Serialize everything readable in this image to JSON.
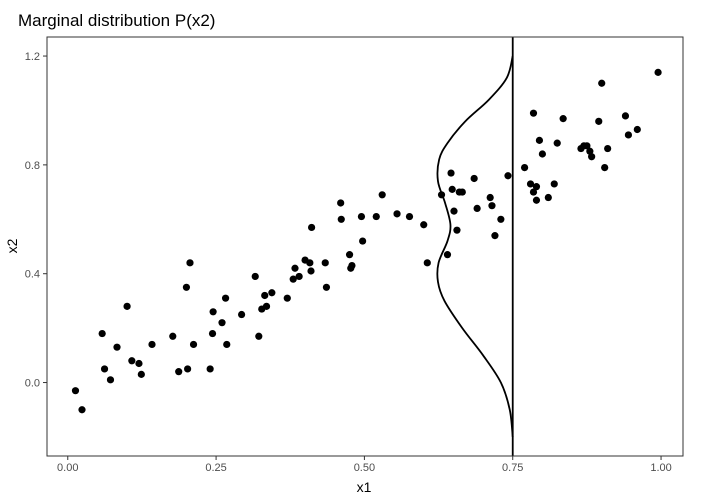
{
  "chart_data": {
    "type": "scatter",
    "title": "Marginal distribution P(x2)",
    "xlabel": "x1",
    "ylabel": "x2",
    "xlim": [
      -0.035,
      1.037
    ],
    "ylim": [
      -0.27,
      1.27
    ],
    "xticks": [
      0.0,
      0.25,
      0.5,
      0.75,
      1.0
    ],
    "xtick_labels": [
      "0.00",
      "0.25",
      "0.50",
      "0.75",
      "1.00"
    ],
    "yticks": [
      0.0,
      0.4,
      0.8,
      1.2
    ],
    "ytick_labels": [
      "0.0",
      "0.4",
      "0.8",
      "1.2"
    ],
    "grid": false,
    "theme": "bw",
    "point_color": "#000000",
    "vline": {
      "x": 0.75,
      "color": "#000000"
    },
    "density_curve": {
      "description": "Marginal density of x2 drawn leftward from the vertical line at x1=0.75 (bimodal, modes near x2≈0.8 and x2≈0.4)",
      "points": [
        [
          0.75,
          -0.2
        ],
        [
          0.745,
          -0.1
        ],
        [
          0.73,
          0.0
        ],
        [
          0.7,
          0.1
        ],
        [
          0.665,
          0.2
        ],
        [
          0.635,
          0.3
        ],
        [
          0.624,
          0.37
        ],
        [
          0.625,
          0.44
        ],
        [
          0.64,
          0.52
        ],
        [
          0.645,
          0.58
        ],
        [
          0.636,
          0.66
        ],
        [
          0.624,
          0.74
        ],
        [
          0.626,
          0.82
        ],
        [
          0.64,
          0.88
        ],
        [
          0.67,
          0.96
        ],
        [
          0.71,
          1.04
        ],
        [
          0.74,
          1.12
        ],
        [
          0.75,
          1.2
        ]
      ]
    },
    "x": [
      0.013,
      0.024,
      0.058,
      0.062,
      0.072,
      0.083,
      0.1,
      0.108,
      0.12,
      0.124,
      0.142,
      0.177,
      0.187,
      0.2,
      0.202,
      0.206,
      0.212,
      0.24,
      0.244,
      0.245,
      0.26,
      0.266,
      0.268,
      0.293,
      0.316,
      0.322,
      0.327,
      0.332,
      0.335,
      0.344,
      0.37,
      0.38,
      0.383,
      0.39,
      0.4,
      0.41,
      0.411,
      0.408,
      0.434,
      0.436,
      0.46,
      0.461,
      0.475,
      0.477,
      0.479,
      0.495,
      0.497,
      0.52,
      0.53,
      0.555,
      0.576,
      0.6,
      0.606,
      0.63,
      0.64,
      0.646,
      0.648,
      0.651,
      0.656,
      0.66,
      0.665,
      0.685,
      0.69,
      0.712,
      0.715,
      0.72,
      0.73,
      0.742,
      0.77,
      0.78,
      0.785,
      0.79,
      0.785,
      0.79,
      0.795,
      0.8,
      0.81,
      0.82,
      0.825,
      0.835,
      0.865,
      0.87,
      0.875,
      0.88,
      0.883,
      0.895,
      0.9,
      0.905,
      0.91,
      0.94,
      0.945,
      0.96,
      0.995
    ],
    "y": [
      -0.03,
      -0.1,
      0.18,
      0.05,
      0.01,
      0.13,
      0.28,
      0.08,
      0.07,
      0.03,
      0.14,
      0.17,
      0.04,
      0.35,
      0.05,
      0.44,
      0.14,
      0.05,
      0.18,
      0.26,
      0.22,
      0.31,
      0.14,
      0.25,
      0.39,
      0.17,
      0.27,
      0.32,
      0.28,
      0.33,
      0.31,
      0.38,
      0.42,
      0.39,
      0.45,
      0.41,
      0.57,
      0.44,
      0.44,
      0.35,
      0.66,
      0.6,
      0.47,
      0.42,
      0.43,
      0.61,
      0.52,
      0.61,
      0.69,
      0.62,
      0.61,
      0.58,
      0.44,
      0.69,
      0.47,
      0.77,
      0.71,
      0.63,
      0.56,
      0.7,
      0.7,
      0.75,
      0.64,
      0.68,
      0.65,
      0.54,
      0.6,
      0.76,
      0.79,
      0.73,
      0.7,
      0.72,
      0.99,
      0.67,
      0.89,
      0.84,
      0.68,
      0.73,
      0.88,
      0.97,
      0.86,
      0.87,
      0.87,
      0.85,
      0.83,
      0.96,
      1.1,
      0.79,
      0.86,
      0.98,
      0.91,
      0.93,
      1.14
    ]
  }
}
